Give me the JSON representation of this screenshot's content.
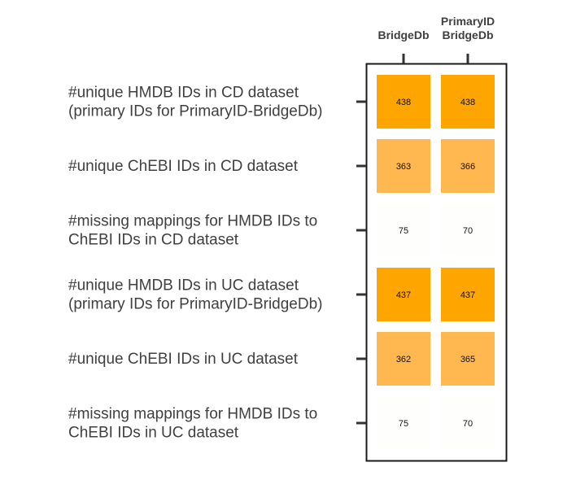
{
  "chart_data": {
    "type": "heatmap",
    "title": "",
    "columns": [
      {
        "lines": [
          "BridgeDb"
        ]
      },
      {
        "lines": [
          "PrimaryID",
          "BridgeDb"
        ]
      }
    ],
    "rows": [
      {
        "lines": [
          "#unique HMDB IDs in CD dataset",
          "(primary IDs for PrimaryID-BridgeDb)"
        ]
      },
      {
        "lines": [
          "#unique ChEBI IDs in CD dataset"
        ]
      },
      {
        "lines": [
          "#missing mappings for HMDB IDs to",
          "ChEBI IDs in CD dataset"
        ]
      },
      {
        "lines": [
          "#unique HMDB IDs in UC dataset",
          "(primary IDs for PrimaryID-BridgeDb)"
        ]
      },
      {
        "lines": [
          "#unique ChEBI IDs in UC dataset"
        ]
      },
      {
        "lines": [
          "#missing mappings for HMDB IDs to",
          "ChEBI IDs in UC dataset"
        ]
      }
    ],
    "values": [
      [
        438,
        438
      ],
      [
        363,
        366
      ],
      [
        75,
        70
      ],
      [
        437,
        437
      ],
      [
        362,
        365
      ],
      [
        75,
        70
      ]
    ],
    "colors": {
      "high": "#FFA500",
      "mid": "#FFB84F",
      "low": "#FEFEFC",
      "frame": "#1a1a1a",
      "label": "#404040"
    },
    "color_thresholds": {
      "high_min": 400,
      "mid_min": 200
    }
  }
}
